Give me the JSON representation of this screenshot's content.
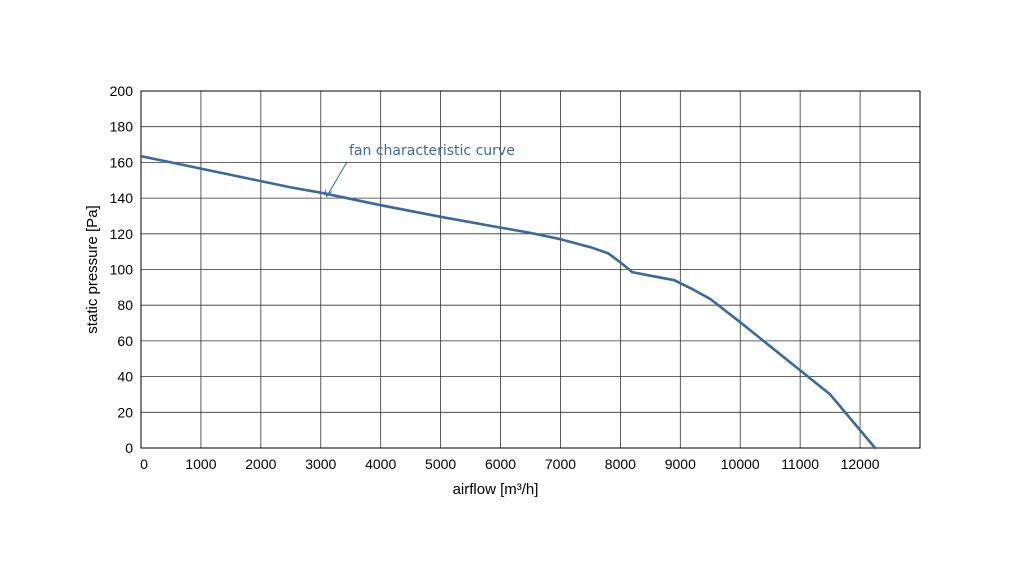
{
  "chart_data": {
    "type": "line",
    "xlabel": "airflow [m³/h]",
    "ylabel": "static pressure [Pa]",
    "xlim": [
      0,
      13000
    ],
    "ylim": [
      0,
      200
    ],
    "x_ticks": [
      0,
      1000,
      2000,
      3000,
      4000,
      5000,
      6000,
      7000,
      8000,
      9000,
      10000,
      11000,
      12000
    ],
    "y_ticks": [
      0,
      20,
      40,
      60,
      80,
      100,
      120,
      140,
      160,
      180,
      200
    ],
    "grid": true,
    "line_color": "#3a6a9c",
    "series": [
      {
        "x": [
          0,
          500,
          1000,
          1500,
          2000,
          2500,
          3000,
          4000,
          5000,
          6000,
          6500,
          7000,
          7500,
          7800,
          8000,
          8200,
          8500,
          8900,
          9200,
          9500,
          10000,
          10500,
          11000,
          11500,
          11900,
          12250
        ],
        "values": [
          163.5,
          160,
          156.5,
          153,
          149.5,
          146,
          143,
          136,
          129.5,
          123.5,
          120.5,
          117,
          112.5,
          109,
          104,
          98.5,
          96.5,
          94,
          89,
          83.5,
          70.5,
          57,
          43.5,
          30,
          14,
          0
        ]
      }
    ],
    "annotations": [
      {
        "text": "fan characteristic curve",
        "x": 3100,
        "y": 141,
        "color": "#3a6a9c"
      }
    ]
  }
}
